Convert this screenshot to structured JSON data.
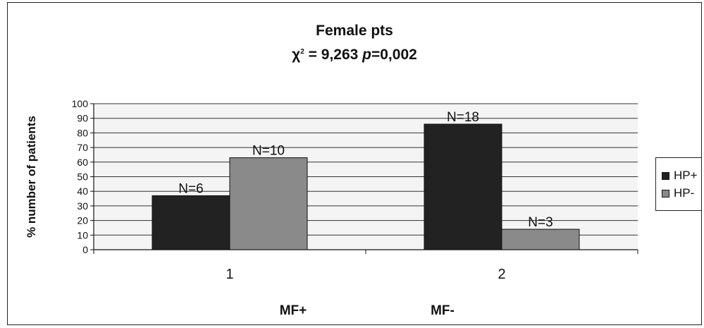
{
  "chart_data": {
    "type": "bar",
    "title": "Female pts",
    "subtitle": {
      "chi_symbol": "χ",
      "chi_sup": "2",
      "chi_value": " = 9,263 ",
      "p_symbol": "p",
      "p_value": "=0,002"
    },
    "ylabel": "% number of patients",
    "ylim": [
      0,
      100
    ],
    "yticks": [
      "0",
      "10",
      "20",
      "30",
      "40",
      "50",
      "60",
      "70",
      "80",
      "90",
      "100"
    ],
    "categories": [
      "1",
      "2"
    ],
    "group_labels": [
      "MF+",
      "MF-"
    ],
    "series": [
      {
        "name": "HP+",
        "color": "#222222",
        "values": [
          37,
          86
        ],
        "labels": [
          "N=6",
          "N=18"
        ]
      },
      {
        "name": "HP-",
        "color": "#8a8a8a",
        "values": [
          63,
          14
        ],
        "labels": [
          "N=10",
          "N=3"
        ]
      }
    ],
    "grid": true,
    "legend_position": "right"
  }
}
